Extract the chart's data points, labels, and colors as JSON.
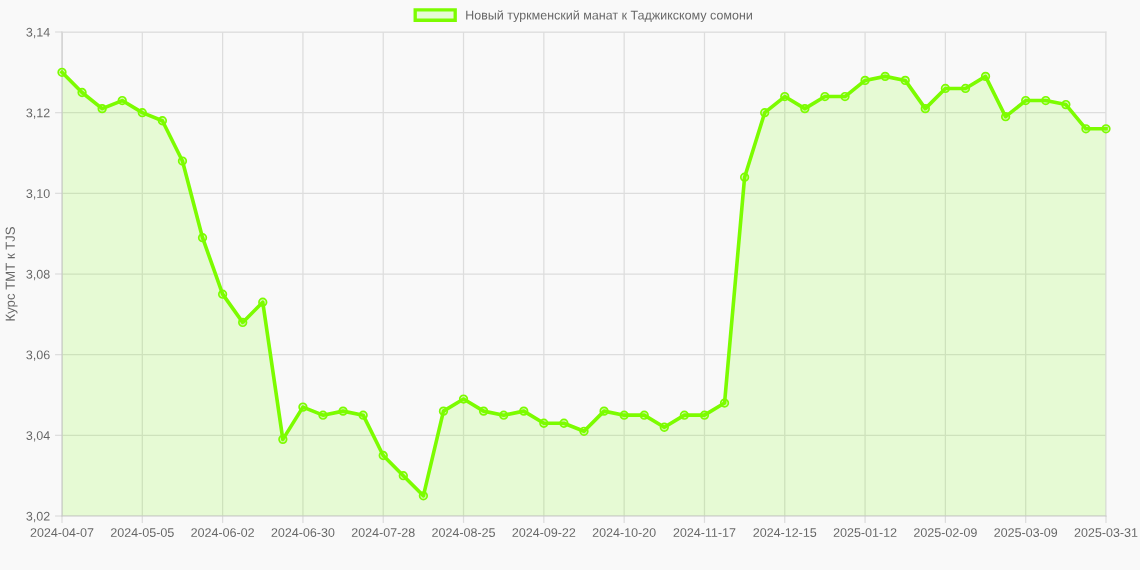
{
  "chart_data": {
    "type": "area",
    "ylabel": "Курс ТМТ к TJS",
    "categories": [
      "2024-04-07",
      null,
      null,
      null,
      "2024-05-05",
      null,
      null,
      null,
      "2024-06-02",
      null,
      null,
      null,
      "2024-06-30",
      null,
      null,
      null,
      "2024-07-28",
      null,
      null,
      null,
      "2024-08-25",
      null,
      null,
      null,
      "2024-09-22",
      null,
      null,
      null,
      "2024-10-20",
      null,
      null,
      null,
      "2024-11-17",
      null,
      null,
      null,
      "2024-12-15",
      null,
      null,
      null,
      "2025-01-12",
      null,
      null,
      null,
      "2025-02-09",
      null,
      null,
      null,
      "2025-03-09",
      null,
      null,
      null,
      "2025-03-31"
    ],
    "series": [
      {
        "name": "Новый туркменский манат к Таджикскому сомони",
        "color": "#7cfc00",
        "values": [
          3.13,
          3.125,
          3.121,
          3.123,
          3.12,
          3.118,
          3.108,
          3.089,
          3.075,
          3.068,
          3.073,
          3.039,
          3.047,
          3.045,
          3.046,
          3.045,
          3.035,
          3.03,
          3.025,
          3.046,
          3.049,
          3.046,
          3.045,
          3.046,
          3.043,
          3.043,
          3.041,
          3.046,
          3.045,
          3.045,
          3.042,
          3.045,
          3.045,
          3.048,
          3.104,
          3.12,
          3.124,
          3.121,
          3.124,
          3.124,
          3.128,
          3.129,
          3.128,
          3.121,
          3.126,
          3.126,
          3.129,
          3.119,
          3.123,
          3.123,
          3.122,
          3.116,
          3.116
        ]
      }
    ],
    "ylim": [
      3.02,
      3.14
    ],
    "yticks": [
      {
        "value": 3.02,
        "label": "3,02"
      },
      {
        "value": 3.04,
        "label": "3,04"
      },
      {
        "value": 3.06,
        "label": "3,06"
      },
      {
        "value": 3.08,
        "label": "3,08"
      },
      {
        "value": 3.1,
        "label": "3,10"
      },
      {
        "value": 3.12,
        "label": "3,12"
      },
      {
        "value": 3.14,
        "label": "3,14"
      }
    ],
    "grid": true,
    "legend": "top",
    "marker": "circle"
  }
}
